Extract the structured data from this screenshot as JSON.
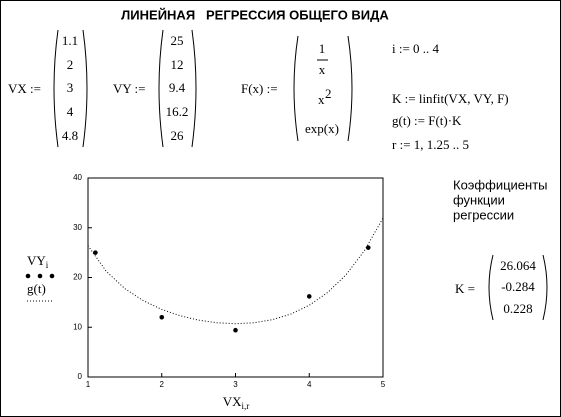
{
  "title": "ЛИНЕЙНАЯ   РЕГРЕССИЯ ОБЩЕГО ВИДА",
  "definitions": {
    "vx": {
      "label": "VX :=",
      "values": [
        1.1,
        2,
        3,
        4,
        4.8
      ]
    },
    "vy": {
      "label": "VY :=",
      "values": [
        25,
        12,
        9.4,
        16.2,
        26
      ]
    },
    "f": {
      "label": "F(x) :=",
      "rows": [
        {
          "num": "1",
          "den": "x"
        },
        {
          "base": "x",
          "sup": "2"
        },
        "exp(x)"
      ]
    },
    "statements": [
      "i := 0 .. 4",
      "K := linfit(VX, VY, F)",
      "g(t) := F(t)·K",
      "r := 1, 1.25 .. 5"
    ]
  },
  "result": {
    "caption": [
      "Коэффициенты",
      "функции",
      "регрессии"
    ],
    "label": "K =",
    "values": [
      26.064,
      -0.284,
      0.228
    ]
  },
  "chart_data": {
    "type": "scatter",
    "x_label": "VX",
    "x_label_sub": "i,r",
    "xlim": [
      1,
      5
    ],
    "xticks": [
      1,
      2,
      3,
      4,
      5
    ],
    "ylim": [
      0,
      40
    ],
    "yticks": [
      0,
      10,
      20,
      30,
      40
    ],
    "series": [
      {
        "name": "VY",
        "name_sub": "i",
        "type": "scatter",
        "color": "#000000",
        "x": [
          1.1,
          2,
          3,
          4,
          4.8
        ],
        "values": [
          25,
          12,
          9.4,
          16.2,
          26
        ]
      },
      {
        "name": "g(t)",
        "type": "line",
        "color": "#000000",
        "x": [
          1,
          1.25,
          1.5,
          1.75,
          2,
          2.25,
          2.5,
          2.75,
          3,
          3.25,
          3.5,
          3.75,
          4,
          4.25,
          4.5,
          4.75,
          5
        ],
        "values": [
          26.4,
          21.2,
          17.76,
          15.34,
          13.58,
          12.31,
          11.43,
          10.9,
          10.71,
          10.9,
          11.52,
          12.65,
          14.42,
          16.99,
          20.57,
          25.43,
          31.95
        ]
      }
    ]
  }
}
